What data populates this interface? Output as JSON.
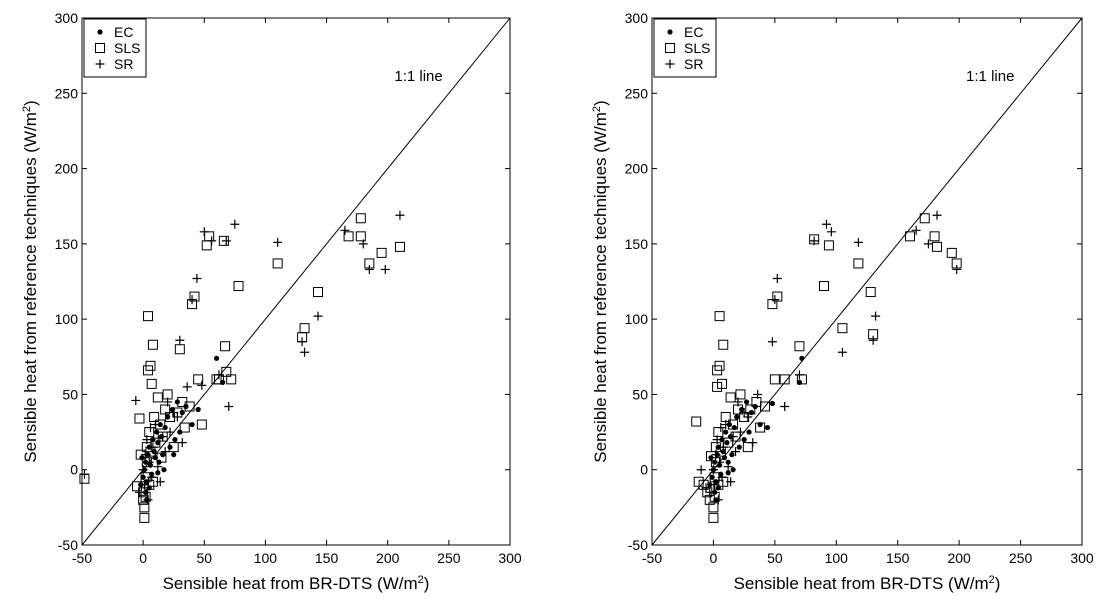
{
  "chart_data": [
    {
      "type": "scatter",
      "xlabel": "Sensible heat from BR-DTS (W/m²)",
      "ylabel": "Sensible heat from reference techniques (W/m²)",
      "xlim": [
        -50,
        300
      ],
      "ylim": [
        -50,
        300
      ],
      "xticks": [
        "-50",
        "0",
        "50",
        "100",
        "150",
        "200",
        "250",
        "300"
      ],
      "yticks": [
        "-50",
        "0",
        "50",
        "100",
        "150",
        "200",
        "250",
        "300"
      ],
      "grid": false,
      "legend_position": "top-left",
      "reference_line": {
        "label": "1:1 line",
        "from": [
          -50,
          -50
        ],
        "to": [
          300,
          300
        ]
      },
      "series": [
        {
          "name": "EC",
          "marker": "dot",
          "points": [
            [
              -2,
              -10
            ],
            [
              0,
              -5
            ],
            [
              1,
              0
            ],
            [
              2,
              5
            ],
            [
              3,
              -8
            ],
            [
              4,
              10
            ],
            [
              5,
              15
            ],
            [
              6,
              3
            ],
            [
              7,
              -3
            ],
            [
              8,
              20
            ],
            [
              9,
              12
            ],
            [
              10,
              8
            ],
            [
              11,
              25
            ],
            [
              12,
              18
            ],
            [
              13,
              5
            ],
            [
              14,
              30
            ],
            [
              15,
              22
            ],
            [
              16,
              10
            ],
            [
              18,
              28
            ],
            [
              20,
              35
            ],
            [
              22,
              15
            ],
            [
              24,
              40
            ],
            [
              26,
              20
            ],
            [
              28,
              45
            ],
            [
              30,
              25
            ],
            [
              32,
              38
            ],
            [
              35,
              42
            ],
            [
              40,
              30
            ],
            [
              45,
              40
            ],
            [
              60,
              74
            ],
            [
              65,
              58
            ],
            [
              3,
              -20
            ],
            [
              5,
              -12
            ],
            [
              -1,
              8
            ],
            [
              2,
              -15
            ],
            [
              17,
              0
            ],
            [
              25,
              10
            ],
            [
              12,
              -2
            ]
          ]
        },
        {
          "name": "SLS",
          "marker": "square",
          "points": [
            [
              -48,
              -6
            ],
            [
              -5,
              -11
            ],
            [
              -3,
              34
            ],
            [
              -2,
              10
            ],
            [
              0,
              -15
            ],
            [
              0,
              -20
            ],
            [
              1,
              -32
            ],
            [
              1,
              -25
            ],
            [
              2,
              -18
            ],
            [
              2,
              -5
            ],
            [
              3,
              5
            ],
            [
              3,
              15
            ],
            [
              4,
              66
            ],
            [
              4,
              102
            ],
            [
              5,
              -10
            ],
            [
              5,
              25
            ],
            [
              6,
              69
            ],
            [
              6,
              12
            ],
            [
              7,
              57
            ],
            [
              8,
              83
            ],
            [
              8,
              -8
            ],
            [
              9,
              35
            ],
            [
              10,
              18
            ],
            [
              12,
              48
            ],
            [
              14,
              30
            ],
            [
              15,
              8
            ],
            [
              16,
              22
            ],
            [
              18,
              40
            ],
            [
              20,
              50
            ],
            [
              22,
              35
            ],
            [
              25,
              15
            ],
            [
              28,
              38
            ],
            [
              30,
              80
            ],
            [
              32,
              45
            ],
            [
              34,
              28
            ],
            [
              38,
              42
            ],
            [
              40,
              110
            ],
            [
              42,
              115
            ],
            [
              45,
              60
            ],
            [
              48,
              30
            ],
            [
              52,
              149
            ],
            [
              54,
              155
            ],
            [
              60,
              60
            ],
            [
              62,
              60
            ],
            [
              66,
              152
            ],
            [
              67,
              82
            ],
            [
              68,
              65
            ],
            [
              72,
              60
            ],
            [
              78,
              122
            ],
            [
              110,
              137
            ],
            [
              130,
              88
            ],
            [
              132,
              94
            ],
            [
              143,
              118
            ],
            [
              168,
              155
            ],
            [
              178,
              167
            ],
            [
              178,
              155
            ],
            [
              185,
              137
            ],
            [
              195,
              144
            ],
            [
              210,
              148
            ]
          ]
        },
        {
          "name": "SR",
          "marker": "plus",
          "points": [
            [
              -48,
              -3
            ],
            [
              -6,
              46
            ],
            [
              -3,
              -15
            ],
            [
              0,
              0
            ],
            [
              1,
              -10
            ],
            [
              2,
              10
            ],
            [
              3,
              20
            ],
            [
              4,
              -20
            ],
            [
              5,
              5
            ],
            [
              6,
              28
            ],
            [
              7,
              -5
            ],
            [
              8,
              15
            ],
            [
              10,
              30
            ],
            [
              12,
              2
            ],
            [
              14,
              -8
            ],
            [
              16,
              22
            ],
            [
              18,
              12
            ],
            [
              20,
              45
            ],
            [
              22,
              25
            ],
            [
              25,
              38
            ],
            [
              28,
              35
            ],
            [
              30,
              86
            ],
            [
              32,
              18
            ],
            [
              36,
              55
            ],
            [
              40,
              113
            ],
            [
              44,
              127
            ],
            [
              48,
              56
            ],
            [
              50,
              158
            ],
            [
              56,
              152
            ],
            [
              62,
              63
            ],
            [
              68,
              152
            ],
            [
              70,
              42
            ],
            [
              75,
              163
            ],
            [
              110,
              151
            ],
            [
              130,
              85
            ],
            [
              132,
              78
            ],
            [
              143,
              102
            ],
            [
              165,
              159
            ],
            [
              180,
              150
            ],
            [
              185,
              133
            ],
            [
              198,
              133
            ],
            [
              210,
              169
            ]
          ]
        }
      ],
      "annotations": [
        "1:1 line"
      ]
    },
    {
      "type": "scatter",
      "xlabel": "Sensible heat from BR-DTS (W/m²)",
      "ylabel": "Sensible heat from reference techniques (W/m²)",
      "xlim": [
        -50,
        300
      ],
      "ylim": [
        -50,
        300
      ],
      "xticks": [
        "-50",
        "0",
        "50",
        "100",
        "150",
        "200",
        "250",
        "300"
      ],
      "yticks": [
        "-50",
        "0",
        "50",
        "100",
        "150",
        "200",
        "250",
        "300"
      ],
      "grid": false,
      "legend_position": "top-left",
      "reference_line": {
        "label": "1:1 line",
        "from": [
          -50,
          -50
        ],
        "to": [
          300,
          300
        ]
      },
      "series": [
        {
          "name": "EC",
          "marker": "dot",
          "points": [
            [
              -3,
              -10
            ],
            [
              -1,
              -5
            ],
            [
              0,
              0
            ],
            [
              1,
              5
            ],
            [
              2,
              -8
            ],
            [
              3,
              10
            ],
            [
              4,
              15
            ],
            [
              5,
              3
            ],
            [
              6,
              -3
            ],
            [
              7,
              20
            ],
            [
              8,
              12
            ],
            [
              9,
              8
            ],
            [
              10,
              25
            ],
            [
              11,
              18
            ],
            [
              12,
              5
            ],
            [
              13,
              30
            ],
            [
              14,
              22
            ],
            [
              15,
              10
            ],
            [
              17,
              28
            ],
            [
              19,
              35
            ],
            [
              21,
              15
            ],
            [
              23,
              40
            ],
            [
              25,
              20
            ],
            [
              27,
              45
            ],
            [
              29,
              25
            ],
            [
              31,
              38
            ],
            [
              34,
              42
            ],
            [
              38,
              30
            ],
            [
              44,
              28
            ],
            [
              48,
              44
            ],
            [
              70,
              58
            ],
            [
              72,
              74
            ],
            [
              2,
              -20
            ],
            [
              4,
              -12
            ],
            [
              -2,
              8
            ],
            [
              1,
              -15
            ],
            [
              16,
              0
            ],
            [
              12,
              -2
            ]
          ]
        },
        {
          "name": "SLS",
          "marker": "square",
          "points": [
            [
              -14,
              32
            ],
            [
              -12,
              -8
            ],
            [
              -8,
              -10
            ],
            [
              -5,
              -15
            ],
            [
              -3,
              -20
            ],
            [
              -2,
              9
            ],
            [
              0,
              -32
            ],
            [
              0,
              -25
            ],
            [
              1,
              -18
            ],
            [
              1,
              -5
            ],
            [
              2,
              5
            ],
            [
              2,
              15
            ],
            [
              3,
              66
            ],
            [
              3,
              55
            ],
            [
              4,
              -10
            ],
            [
              4,
              25
            ],
            [
              5,
              102
            ],
            [
              5,
              69
            ],
            [
              6,
              12
            ],
            [
              7,
              57
            ],
            [
              8,
              83
            ],
            [
              8,
              -8
            ],
            [
              10,
              35
            ],
            [
              12,
              18
            ],
            [
              14,
              48
            ],
            [
              16,
              30
            ],
            [
              18,
              22
            ],
            [
              20,
              40
            ],
            [
              22,
              50
            ],
            [
              25,
              35
            ],
            [
              28,
              15
            ],
            [
              30,
              40
            ],
            [
              35,
              45
            ],
            [
              38,
              28
            ],
            [
              42,
              42
            ],
            [
              48,
              110
            ],
            [
              50,
              60
            ],
            [
              52,
              115
            ],
            [
              58,
              60
            ],
            [
              70,
              82
            ],
            [
              72,
              60
            ],
            [
              82,
              153
            ],
            [
              90,
              122
            ],
            [
              94,
              149
            ],
            [
              105,
              94
            ],
            [
              118,
              137
            ],
            [
              128,
              118
            ],
            [
              130,
              90
            ],
            [
              160,
              155
            ],
            [
              172,
              167
            ],
            [
              180,
              155
            ],
            [
              182,
              148
            ],
            [
              194,
              144
            ],
            [
              198,
              137
            ]
          ]
        },
        {
          "name": "SR",
          "marker": "plus",
          "points": [
            [
              -10,
              0
            ],
            [
              -6,
              -12
            ],
            [
              -3,
              -15
            ],
            [
              0,
              0
            ],
            [
              1,
              -10
            ],
            [
              2,
              10
            ],
            [
              3,
              20
            ],
            [
              4,
              -20
            ],
            [
              5,
              5
            ],
            [
              6,
              28
            ],
            [
              7,
              -5
            ],
            [
              8,
              15
            ],
            [
              10,
              30
            ],
            [
              12,
              2
            ],
            [
              14,
              -8
            ],
            [
              16,
              22
            ],
            [
              18,
              12
            ],
            [
              20,
              45
            ],
            [
              22,
              25
            ],
            [
              25,
              38
            ],
            [
              28,
              35
            ],
            [
              32,
              18
            ],
            [
              36,
              50
            ],
            [
              48,
              85
            ],
            [
              50,
              113
            ],
            [
              52,
              127
            ],
            [
              58,
              42
            ],
            [
              70,
              63
            ],
            [
              82,
              152
            ],
            [
              92,
              163
            ],
            [
              96,
              158
            ],
            [
              105,
              78
            ],
            [
              118,
              151
            ],
            [
              130,
              86
            ],
            [
              132,
              102
            ],
            [
              165,
              159
            ],
            [
              175,
              150
            ],
            [
              182,
              169
            ],
            [
              198,
              133
            ]
          ]
        }
      ],
      "annotations": [
        "1:1 line"
      ]
    }
  ]
}
